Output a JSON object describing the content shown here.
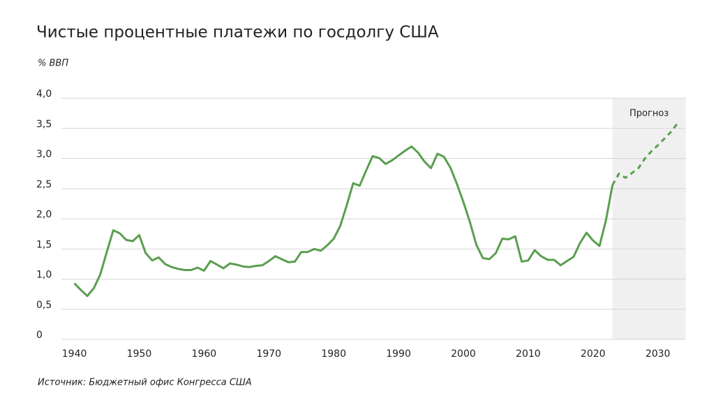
{
  "chart_data": {
    "type": "line",
    "title": "Чистые процентные платежи по госдолгу США",
    "y_label": "% ВВП",
    "source": "Источник: Бюджетный офис Конгресса США",
    "annotation": "Прогноз",
    "forecast_from": 2023,
    "x": [
      1940,
      1941,
      1942,
      1943,
      1944,
      1945,
      1946,
      1947,
      1948,
      1949,
      1950,
      1951,
      1952,
      1953,
      1954,
      1955,
      1956,
      1957,
      1958,
      1959,
      1960,
      1961,
      1962,
      1963,
      1964,
      1965,
      1966,
      1967,
      1968,
      1969,
      1970,
      1971,
      1972,
      1973,
      1974,
      1975,
      1976,
      1977,
      1978,
      1979,
      1980,
      1981,
      1982,
      1983,
      1984,
      1985,
      1986,
      1987,
      1988,
      1989,
      1990,
      1991,
      1992,
      1993,
      1994,
      1995,
      1996,
      1997,
      1998,
      1999,
      2000,
      2001,
      2002,
      2003,
      2004,
      2005,
      2006,
      2007,
      2008,
      2009,
      2010,
      2011,
      2012,
      2013,
      2014,
      2015,
      2016,
      2017,
      2018,
      2019,
      2020,
      2021,
      2022,
      2023,
      2024,
      2025,
      2026,
      2027,
      2028,
      2029,
      2030,
      2031,
      2032,
      2033
    ],
    "series": [
      {
        "color": "#5a9e4f",
        "style": "solid",
        "values": [
          0.93,
          0.82,
          0.72,
          0.85,
          1.08,
          1.45,
          1.81,
          1.76,
          1.65,
          1.63,
          1.73,
          1.43,
          1.31,
          1.36,
          1.25,
          1.2,
          1.17,
          1.15,
          1.15,
          1.19,
          1.14,
          1.3,
          1.24,
          1.18,
          1.26,
          1.24,
          1.21,
          1.2,
          1.22,
          1.23,
          1.3,
          1.38,
          1.33,
          1.28,
          1.29,
          1.45,
          1.45,
          1.5,
          1.47,
          1.56,
          1.67,
          1.88,
          2.22,
          2.59,
          2.55,
          2.8,
          3.04,
          3.01,
          2.91,
          2.97,
          3.05,
          3.13,
          3.2,
          3.1,
          2.95,
          2.84,
          3.08,
          3.03,
          2.85,
          2.58,
          2.28,
          1.95,
          1.57,
          1.35,
          1.33,
          1.43,
          1.67,
          1.66,
          1.71,
          1.29,
          1.31,
          1.48,
          1.38,
          1.32,
          1.32,
          1.23,
          1.3,
          1.37,
          1.6,
          1.77,
          1.64,
          1.55,
          1.98,
          2.56,
          null,
          null,
          null,
          null,
          null,
          null,
          null,
          null,
          null,
          null
        ]
      },
      {
        "color": "#5a9e4f",
        "style": "dashed",
        "values": [
          null,
          null,
          null,
          null,
          null,
          null,
          null,
          null,
          null,
          null,
          null,
          null,
          null,
          null,
          null,
          null,
          null,
          null,
          null,
          null,
          null,
          null,
          null,
          null,
          null,
          null,
          null,
          null,
          null,
          null,
          null,
          null,
          null,
          null,
          null,
          null,
          null,
          null,
          null,
          null,
          null,
          null,
          null,
          null,
          null,
          null,
          null,
          null,
          null,
          null,
          null,
          null,
          null,
          null,
          null,
          null,
          null,
          null,
          null,
          null,
          null,
          null,
          null,
          null,
          null,
          null,
          null,
          null,
          null,
          null,
          null,
          null,
          null,
          null,
          null,
          null,
          null,
          null,
          null,
          null,
          null,
          null,
          null,
          2.56,
          2.75,
          2.68,
          2.76,
          2.84,
          3.0,
          3.12,
          3.22,
          3.33,
          3.44,
          3.58
        ]
      }
    ],
    "xlim": [
      1938,
      2034.3
    ],
    "xticks": [
      1940,
      1950,
      1960,
      1970,
      1980,
      1990,
      2000,
      2010,
      2020,
      2030
    ],
    "ylim": [
      0,
      4
    ],
    "yticks": [
      0,
      {
        "value": 0.5,
        "label": "0,5"
      },
      {
        "value": 1,
        "label": "1,0"
      },
      {
        "value": 1.5,
        "label": "1,5"
      },
      {
        "value": 2,
        "label": "2,0"
      },
      {
        "value": 2.5,
        "label": "2,5"
      },
      {
        "value": 3,
        "label": "3,0"
      },
      {
        "value": 3.5,
        "label": "3,5"
      },
      {
        "value": 4,
        "label": "4,0"
      }
    ],
    "grid": true
  }
}
